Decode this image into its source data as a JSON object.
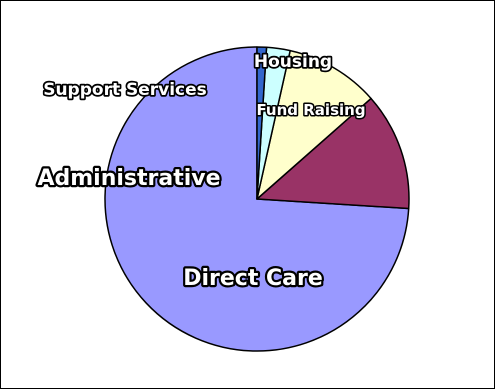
{
  "chart_data": {
    "type": "pie",
    "title": "",
    "slices": [
      {
        "label": "Direct Care",
        "value": 74.0,
        "color": "#9999FF"
      },
      {
        "label": "Administrative",
        "value": 12.5,
        "color": "#993366"
      },
      {
        "label": "Support Services",
        "value": 10.0,
        "color": "#FFFFCC"
      },
      {
        "label": "Housing",
        "value": 2.5,
        "color": "#CCFFFF"
      },
      {
        "label": "Fund Raising",
        "value": 1.0,
        "color": "#3366CC"
      }
    ],
    "legend": "none",
    "labels_on_chart": true
  }
}
